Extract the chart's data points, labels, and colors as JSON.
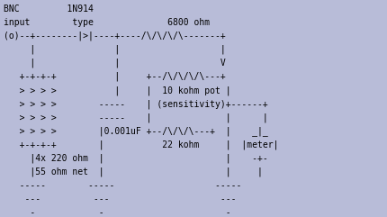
{
  "background_color": "#b8bcd8",
  "text_color": "#000000",
  "font_family": "monospace",
  "font_size": 7.0,
  "figsize": [
    4.31,
    2.41
  ],
  "dpi": 100,
  "lines": [
    "BNC         1N914",
    "input        type              6800 ohm",
    "(o)--+--------|>|----+----/\\/\\/\\/\\-------+",
    "     |               |                   |",
    "     |               |                   V",
    "   +-+-+-+           |     +--/\\/\\/\\/\\---+",
    "   > > > >           |     |  10 kohm pot |",
    "   > > > >        -----    | (sensitivity)+------+",
    "   > > > >        -----    |              |      |",
    "   > > > >        |0.001uF +--/\\/\\/\\---+  |    _|_",
    "   +-+-+-+        |           22 kohm     |  |meter|",
    "     |4x 220 ohm  |                       |    -+-",
    "     |55 ohm net  |                       |     |",
    "   -----        -----                   -----",
    "    ---          ---                     ---",
    "     -            -                       -"
  ]
}
